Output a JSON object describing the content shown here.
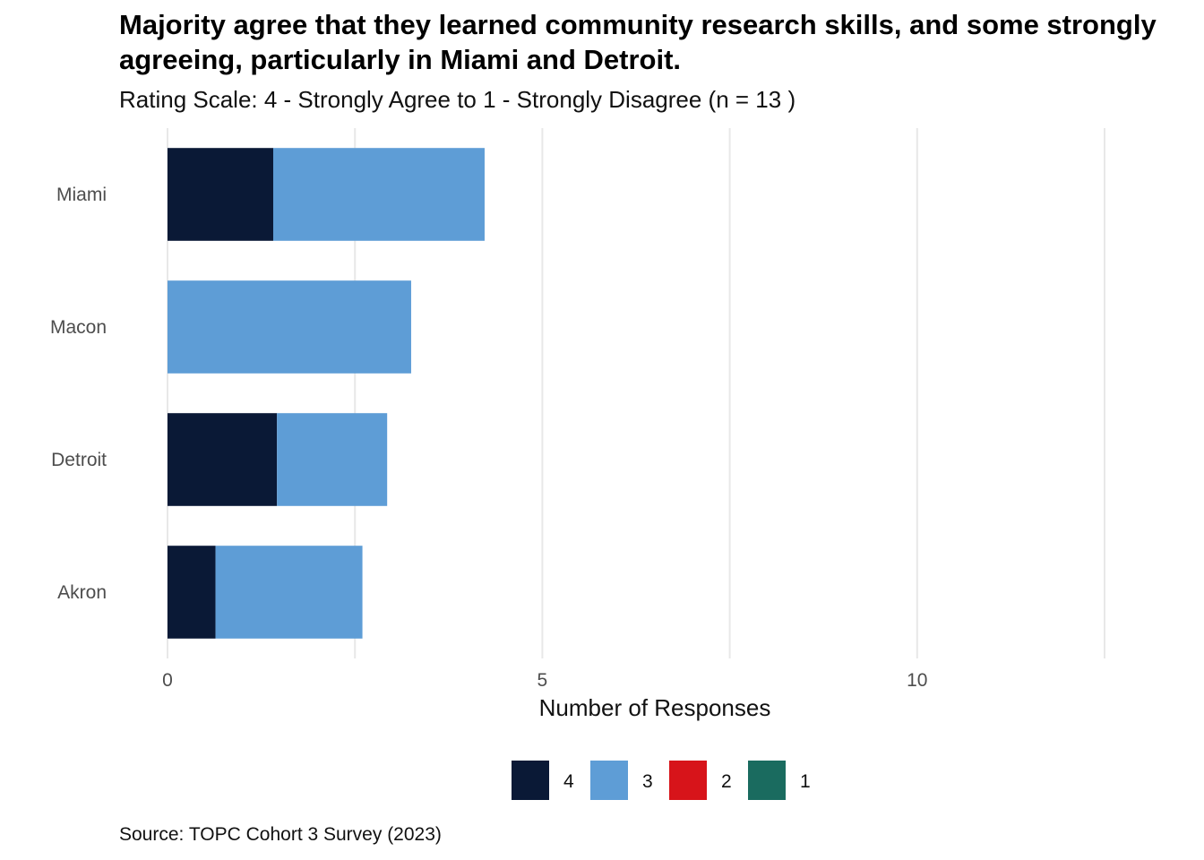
{
  "chart_data": {
    "type": "bar",
    "orientation": "horizontal",
    "stacked": true,
    "title": "Majority agree that they learned community research skills, and some strongly agreeing, particularly in Miami and Detroit.",
    "subtitle": "Rating Scale: 4 - Strongly Agree to 1 - Strongly Disagree (n = 13 )",
    "caption": "Source: TOPC Cohort 3 Survey (2023)",
    "xlabel": "Number of Responses",
    "ylabel": "",
    "categories": [
      "Miami",
      "Macon",
      "Detroit",
      "Akron"
    ],
    "xlim": [
      0,
      12.5
    ],
    "xticks": [
      0,
      5,
      10
    ],
    "grid": true,
    "legend_position": "bottom",
    "series": [
      {
        "name": "4",
        "color": "#0a1936",
        "values": [
          1.41,
          0,
          1.46,
          0.64
        ]
      },
      {
        "name": "3",
        "color": "#5e9dd6",
        "values": [
          2.82,
          3.25,
          1.47,
          1.96
        ]
      },
      {
        "name": "2",
        "color": "#d7141a",
        "values": [
          0,
          0,
          0,
          0
        ]
      },
      {
        "name": "1",
        "color": "#1a6b5f",
        "values": [
          0,
          0,
          0,
          0
        ]
      }
    ]
  }
}
